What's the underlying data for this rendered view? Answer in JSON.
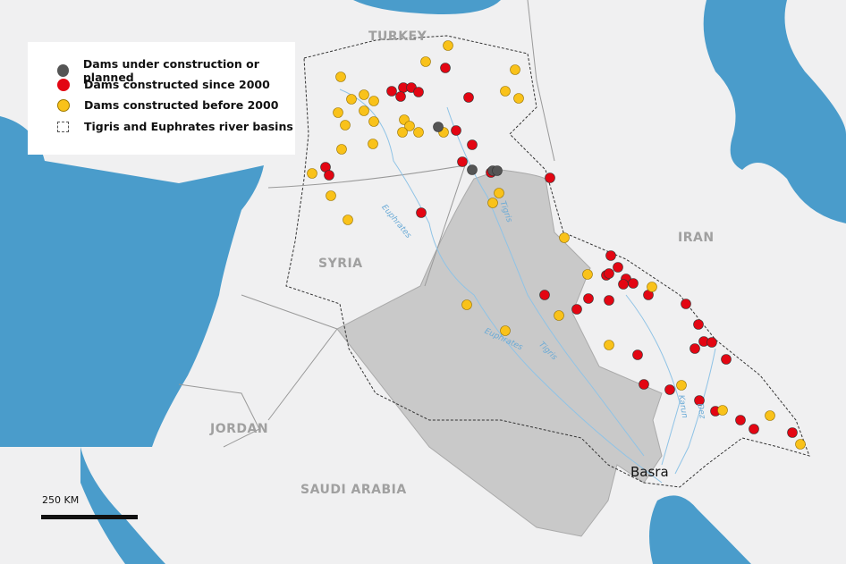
{
  "legend": {
    "items": [
      {
        "label": "Dams under construction or planned",
        "color": "#555555"
      },
      {
        "label": "Dams constructed since 2000",
        "color": "#e30613"
      },
      {
        "label": "Dams constructed before 2000",
        "color": "#f9c21a"
      },
      {
        "label": "Tigris and Euphrates river basins"
      }
    ]
  },
  "countries": {
    "turkey": "TURKEY",
    "syria": "SYRIA",
    "iran": "IRAN",
    "jordan": "JORDAN",
    "saudi": "SAUDI ARABIA"
  },
  "cities": {
    "basra": "Basra"
  },
  "rivers": {
    "euphrates1": "Euphrates",
    "euphrates2": "Euphrates",
    "tigris1": "Tigris",
    "tigris2": "Tigris",
    "karun": "Karun",
    "dez": "Dez"
  },
  "scale": {
    "label": "250 KM"
  },
  "colors": {
    "sea": "#4a9ccb",
    "land": "#f0f0f1",
    "iraq": "#c9c9c9",
    "river": "#8fc3e6"
  }
}
